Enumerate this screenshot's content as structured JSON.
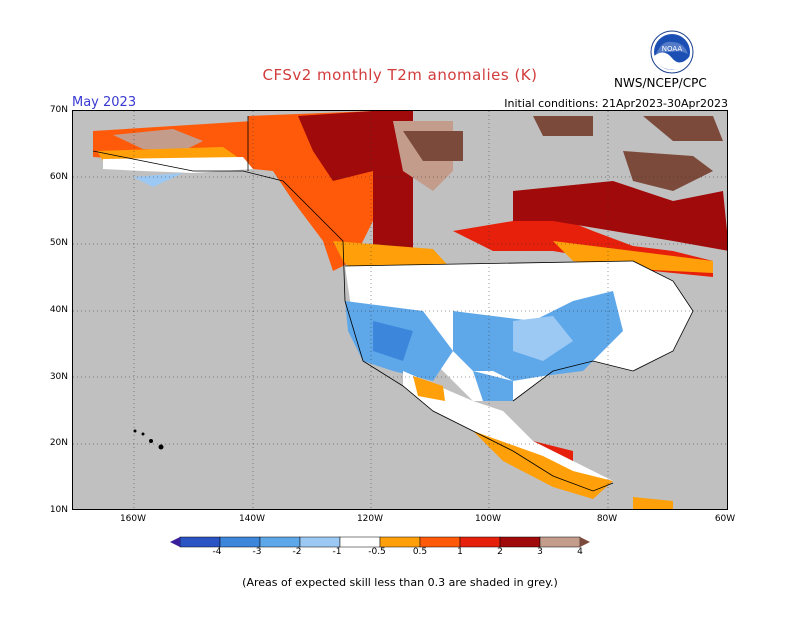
{
  "header": {
    "title": "CFSv2 monthly T2m anomalies (K)",
    "month": "May 2023",
    "initial_conditions": "Initial conditions: 21Apr2023-30Apr2023",
    "agency": "NWS/NCEP/CPC",
    "logo_text": "NOAA"
  },
  "map": {
    "lat_labels": [
      "70N",
      "60N",
      "50N",
      "40N",
      "30N",
      "20N",
      "10N"
    ],
    "lon_labels": [
      "160W",
      "140W",
      "120W",
      "100W",
      "80W",
      "60W"
    ],
    "background_color": "#c0c0c0"
  },
  "colorbar": {
    "labels": [
      "-4",
      "-3",
      "-2",
      "-1",
      "-0.5",
      "0.5",
      "1",
      "2",
      "3",
      "4"
    ],
    "colors": [
      "#3a1f9c",
      "#2a53c4",
      "#3c86dc",
      "#5ea8ea",
      "#9cc8f4",
      "#ffffff",
      "#ffa00a",
      "#ff5a0a",
      "#e6200a",
      "#a00a0a",
      "#c49c8c",
      "#7c4a3a"
    ]
  },
  "footnote": "(Areas of expected skill less than 0.3 are shaded in grey.)"
}
